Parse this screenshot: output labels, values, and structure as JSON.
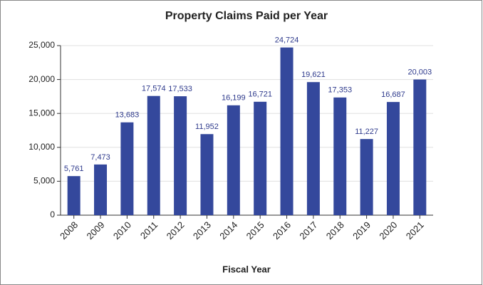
{
  "chart_data": {
    "type": "bar",
    "title": "Property Claims Paid per Year",
    "x_label": "Fiscal Year",
    "categories": [
      "2008",
      "2009",
      "2010",
      "2011",
      "2012",
      "2013",
      "2014",
      "2015",
      "2016",
      "2017",
      "2018",
      "2019",
      "2020",
      "2021"
    ],
    "values": [
      5761,
      7473,
      13683,
      17574,
      17533,
      11952,
      16199,
      16721,
      24724,
      19621,
      17353,
      11227,
      16687,
      20003
    ],
    "value_labels": [
      "5,761",
      "7,473",
      "13,683",
      "17,574",
      "17,533",
      "11,952",
      "16,199",
      "16,721",
      "24,724",
      "19,621",
      "17,353",
      "11,227",
      "16,687",
      "20,003"
    ],
    "color": "#34489c",
    "ylim": [
      0,
      25000
    ],
    "yticks": [
      0,
      {
        "value": 5000,
        "label": "5,000"
      },
      {
        "value": 10000,
        "label": "10,000"
      },
      {
        "value": 15000,
        "label": "15,000"
      },
      {
        "value": 20000,
        "label": "20,000"
      },
      {
        "value": 25000,
        "label": "25,000"
      }
    ],
    "grid": true
  }
}
